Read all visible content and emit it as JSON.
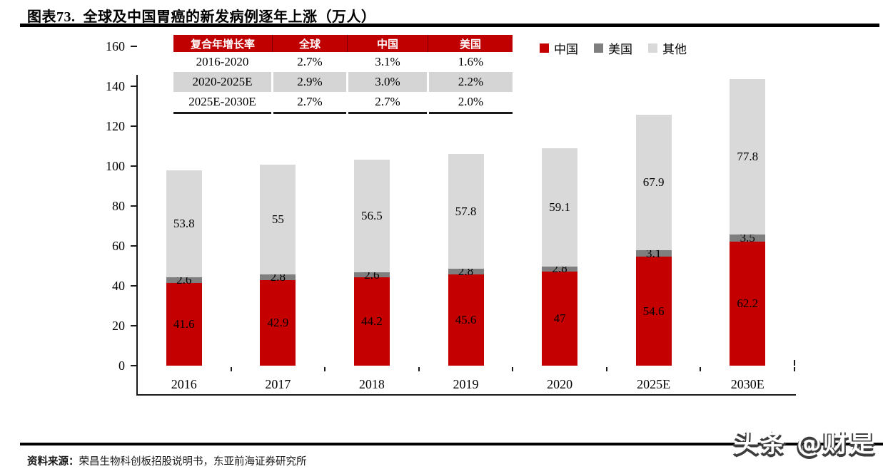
{
  "title": "图表73.  全球及中国胃癌的新发病例逐年上涨（万人）",
  "colors": {
    "china_red": "#C40000",
    "us_gray": "#7F7F7F",
    "other_gray": "#D9D9D9",
    "table_header_red": "#C00000",
    "table_alt_row_gray": "#D5D5D5",
    "axis_black": "#1a1a1a"
  },
  "legend": [
    {
      "label": "中国",
      "color": "#C40000"
    },
    {
      "label": "美国",
      "color": "#7F7F7F"
    },
    {
      "label": "其他",
      "color": "#D9D9D9"
    }
  ],
  "cagr_table": {
    "headers": [
      "复合年增长率",
      "全球",
      "中国",
      "美国"
    ],
    "rows": [
      {
        "period": "2016-2020",
        "global": "2.7%",
        "china": "3.1%",
        "us": "1.6%"
      },
      {
        "period": "2020-2025E",
        "global": "2.9%",
        "china": "3.0%",
        "us": "2.2%"
      },
      {
        "period": "2025E-2030E",
        "global": "2.7%",
        "china": "2.7%",
        "us": "2.0%"
      }
    ]
  },
  "chart_data": {
    "type": "bar",
    "stacked": true,
    "title": "全球及中国胃癌的新发病例逐年上涨（万人）",
    "categories": [
      "2016",
      "2017",
      "2018",
      "2019",
      "2020",
      "2025E",
      "2030E"
    ],
    "series": [
      {
        "name": "中国",
        "color": "#C40000",
        "values": [
          41.6,
          42.9,
          44.2,
          45.6,
          47,
          54.6,
          62.2
        ]
      },
      {
        "name": "美国",
        "color": "#7F7F7F",
        "values": [
          2.6,
          2.8,
          2.6,
          2.8,
          2.8,
          3.1,
          3.5
        ]
      },
      {
        "name": "其他",
        "color": "#D9D9D9",
        "values": [
          53.8,
          55,
          56.5,
          57.8,
          59.1,
          67.9,
          77.8
        ]
      }
    ],
    "totals": [
      98.0,
      100.7,
      103.3,
      106.2,
      108.9,
      125.6,
      143.5
    ],
    "xlabel": "",
    "ylabel": "",
    "ylim": [
      0,
      160
    ],
    "ytick_step": 20,
    "yticks": [
      0,
      20,
      40,
      60,
      80,
      100,
      120,
      140,
      160
    ],
    "grid": false,
    "legend_position": "top-right",
    "value_labels": "inside-center"
  },
  "source": {
    "label": "资料来源：",
    "text": "荣昌生物科创板招股说明书，东亚前海证券研究所"
  },
  "watermark": "头条 @财是"
}
